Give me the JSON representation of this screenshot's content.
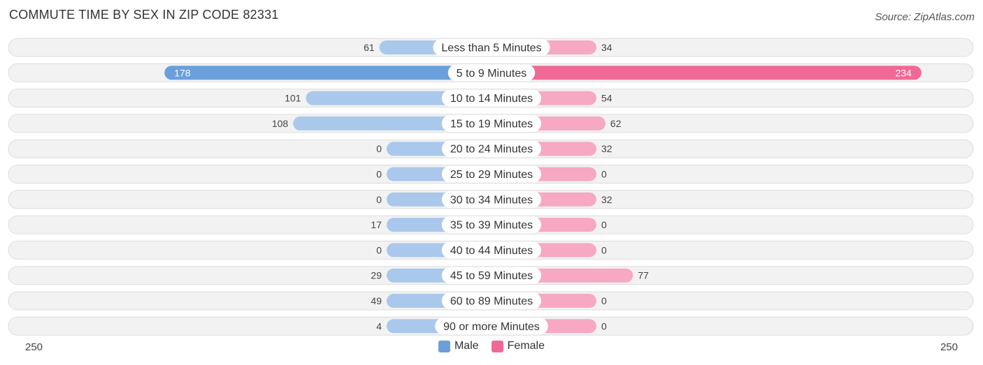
{
  "title": "COMMUTE TIME BY SEX IN ZIP CODE 82331",
  "source": "Source: ZipAtlas.com",
  "colors": {
    "male": "#6a9fdb",
    "male_light": "#a9c8eb",
    "female": "#f06895",
    "female_light": "#f7a8c3"
  },
  "legend": {
    "male_label": "Male",
    "female_label": "Female"
  },
  "axis": {
    "left_label": "250",
    "right_label": "250"
  },
  "chart_data": {
    "type": "bar",
    "orientation": "diverging-horizontal",
    "title": "COMMUTE TIME BY SEX IN ZIP CODE 82331",
    "xlim": [
      -250,
      250
    ],
    "categories": [
      "Less than 5 Minutes",
      "5 to 9 Minutes",
      "10 to 14 Minutes",
      "15 to 19 Minutes",
      "20 to 24 Minutes",
      "25 to 29 Minutes",
      "30 to 34 Minutes",
      "35 to 39 Minutes",
      "40 to 44 Minutes",
      "45 to 59 Minutes",
      "60 to 89 Minutes",
      "90 or more Minutes"
    ],
    "series": [
      {
        "name": "Male",
        "values": [
          61,
          178,
          101,
          108,
          0,
          0,
          0,
          17,
          0,
          29,
          49,
          4
        ]
      },
      {
        "name": "Female",
        "values": [
          34,
          234,
          54,
          62,
          32,
          0,
          32,
          0,
          0,
          77,
          0,
          0
        ]
      }
    ],
    "legend_position": "bottom-center"
  }
}
